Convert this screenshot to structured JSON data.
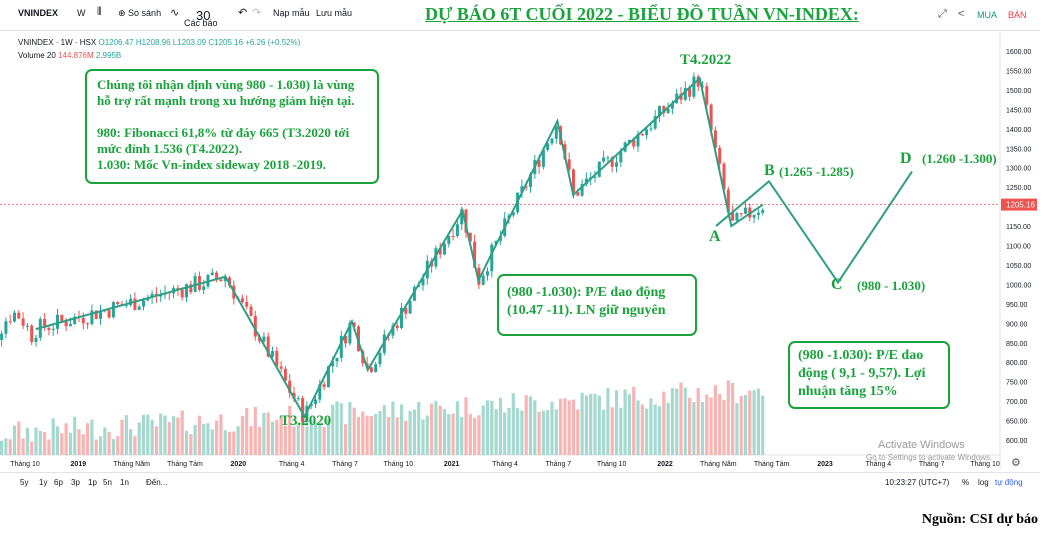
{
  "toolbar": {
    "symbol": "VNINDEX",
    "interval": "W",
    "compare_label": "So sánh",
    "indicators_label": "Các báo",
    "indicators_badge": "30",
    "templates_label": "Nạp mẫu",
    "save_label": "Lưu mẫu",
    "buy_label": "MUA",
    "sell_label": "BÁN"
  },
  "headline": "DỰ BÁO 6T CUỐI 2022 -  BIỂU ĐỒ TUẦN VN-INDEX:",
  "legend": {
    "main": "VNINDEX · 1W · HSX",
    "ohlc": "O1206.47 H1208.96 L1203.09 C1205.16 +6.26 (+0.52%)",
    "volume_label": "Volume 20",
    "volume_value": "144.876M",
    "volume_value2": "2.995B"
  },
  "chart_data": {
    "type": "candlestick",
    "price_axis": {
      "min": 600,
      "max": 1600,
      "ticks": [
        1600,
        1550,
        1500,
        1450,
        1400,
        1350,
        1300,
        1250,
        1200,
        1150,
        1100,
        1050,
        1000,
        950,
        900,
        850,
        800,
        750,
        700,
        650,
        600
      ],
      "last_price": "1205.16"
    },
    "time_axis": {
      "labels": [
        "Tháng 10",
        "2019",
        "Tháng Năm",
        "Tháng Tám",
        "2020",
        "Tháng 4",
        "Tháng 7",
        "Tháng 10",
        "2021",
        "Tháng 4",
        "Tháng 7",
        "Tháng 10",
        "2022",
        "Tháng Năm",
        "Tháng Tám",
        "2023",
        "Tháng 4",
        "Tháng 7",
        "Tháng 10"
      ]
    },
    "wave_history": [
      {
        "date": "2018-10",
        "value": 885
      },
      {
        "date": "2019-10",
        "value": 1020
      },
      {
        "date": "2020-03",
        "value": 660
      },
      {
        "date": "2020-06",
        "value": 905
      },
      {
        "date": "2020-07",
        "value": 780
      },
      {
        "date": "2021-01",
        "value": 1190
      },
      {
        "date": "2021-02",
        "value": 1010
      },
      {
        "date": "2021-07",
        "value": 1420
      },
      {
        "date": "2021-08",
        "value": 1230
      },
      {
        "date": "2022-04",
        "value": 1530
      },
      {
        "date": "2022-06",
        "value": 1150
      },
      {
        "date": "2022-08",
        "value": 1205
      }
    ],
    "forecast_path": [
      {
        "point": "A",
        "value": 1150
      },
      {
        "point": "B",
        "value": 1265
      },
      {
        "point": "C",
        "value": 1005
      },
      {
        "point": "D",
        "value": 1290
      }
    ],
    "labels": {
      "low_2020": "T3.2020",
      "peak_2022": "T4.2022",
      "A": "A",
      "B": "B",
      "B_range": "(1.265 -1.285)",
      "C": "C",
      "C_range": "(980 - 1.030)",
      "D": "D",
      "D_range": "(1.260 -1.300)"
    },
    "volume_axis_label": "Volume"
  },
  "notes": {
    "support": [
      "Chúng tôi nhận định vùng 980 - 1.030) là vùng",
      "hỗ trợ rất mạnh trong xu hướng giảm hiện tại.",
      "",
      "980: Fibonacci 61,8% từ đáy 665 (T3.2020 tới",
      "mức đỉnh 1.536 (T4.2022).",
      "1.030: Mốc Vn-index sideway 2018 -2019."
    ],
    "pe_mid": [
      "(980 -1.030): P/E dao động",
      "(10.47 -11). LN giữ nguyên"
    ],
    "pe_right": [
      "(980 -1.030): P/E dao",
      "động ( 9,1 - 9,57). Lợi",
      "nhuận tăng 15%"
    ]
  },
  "bottom_bar": {
    "ranges": [
      "5y",
      "1y",
      "6p",
      "3p",
      "1p",
      "5n",
      "1n"
    ],
    "goto": "Đến...",
    "time": "10:23:27 (UTC+7)",
    "percent": "%",
    "log": "log",
    "auto": "tự động"
  },
  "watermark": {
    "line1": "Activate Windows",
    "line2": "Go to Settings to activate Windows."
  },
  "source": "Nguồn: CSI dự báo",
  "colors": {
    "up": "#26a69a",
    "down": "#ef5350",
    "wave": "#2e9e85",
    "annotation": "#1aa33c"
  }
}
